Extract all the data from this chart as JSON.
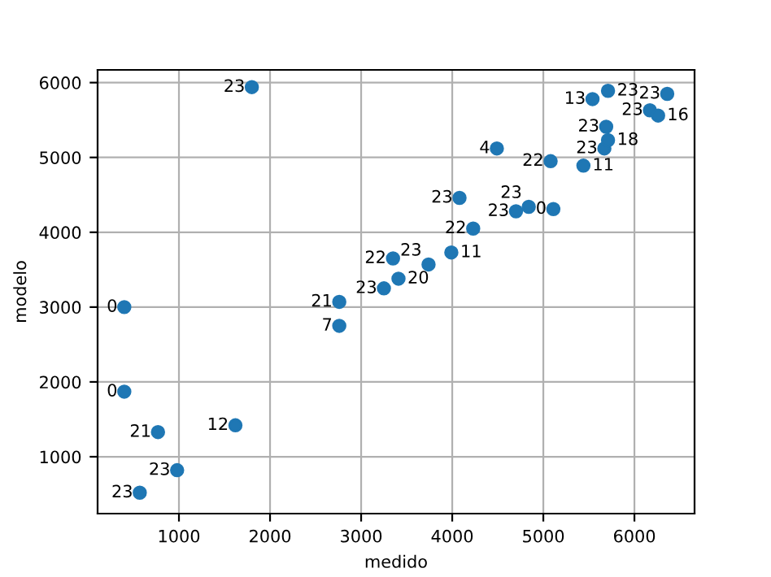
{
  "chart_data": {
    "type": "scatter",
    "xlabel": "medido",
    "ylabel": "modelo",
    "x": [
      1800,
      400,
      400,
      770,
      1620,
      980,
      570,
      2760,
      2760,
      3350,
      3410,
      3250,
      3740,
      3990,
      4230,
      4080,
      4490,
      4700,
      4840,
      5110,
      5080,
      5440,
      5670,
      5710,
      5690,
      5540,
      5710,
      6170,
      6260,
      6360
    ],
    "series": [
      {
        "color": "#1f77b4",
        "values": [
          5940,
          3000,
          1870,
          1330,
          1420,
          820,
          520,
          3070,
          2750,
          3650,
          3380,
          3250,
          3570,
          3730,
          4050,
          4460,
          5120,
          4280,
          4340,
          4310,
          4950,
          4890,
          5120,
          5230,
          5410,
          5780,
          5890,
          5630,
          5560,
          5850
        ]
      }
    ],
    "annotations": [
      {
        "text": "23",
        "x": 1800,
        "y": 5940
      },
      {
        "text": "0",
        "x": 400,
        "y": 3000
      },
      {
        "text": "0",
        "x": 400,
        "y": 1870
      },
      {
        "text": "21",
        "x": 770,
        "y": 1330
      },
      {
        "text": "12",
        "x": 1620,
        "y": 1420
      },
      {
        "text": "23",
        "x": 980,
        "y": 820
      },
      {
        "text": "23",
        "x": 570,
        "y": 520
      },
      {
        "text": "21",
        "x": 2760,
        "y": 3070
      },
      {
        "text": "7",
        "x": 2760,
        "y": 2750
      },
      {
        "text": "22",
        "x": 3350,
        "y": 3650
      },
      {
        "text": "20",
        "x": 3410,
        "y": 3380
      },
      {
        "text": "23",
        "x": 3250,
        "y": 3250
      },
      {
        "text": "23",
        "x": 3740,
        "y": 3570
      },
      {
        "text": "11",
        "x": 3990,
        "y": 3730
      },
      {
        "text": "22",
        "x": 4230,
        "y": 4050
      },
      {
        "text": "23",
        "x": 4080,
        "y": 4460
      },
      {
        "text": "4",
        "x": 4490,
        "y": 5120
      },
      {
        "text": "23",
        "x": 4700,
        "y": 4280
      },
      {
        "text": "23",
        "x": 4840,
        "y": 4340
      },
      {
        "text": "0",
        "x": 5110,
        "y": 4310
      },
      {
        "text": "22",
        "x": 5080,
        "y": 4950
      },
      {
        "text": "11",
        "x": 5440,
        "y": 4890
      },
      {
        "text": "23",
        "x": 5670,
        "y": 5120
      },
      {
        "text": "18",
        "x": 5710,
        "y": 5230
      },
      {
        "text": "23",
        "x": 5690,
        "y": 5410
      },
      {
        "text": "13",
        "x": 5540,
        "y": 5780
      },
      {
        "text": "23",
        "x": 5710,
        "y": 5890
      },
      {
        "text": "23",
        "x": 6170,
        "y": 5630
      },
      {
        "text": "16",
        "x": 6260,
        "y": 5560
      },
      {
        "text": "23",
        "x": 6360,
        "y": 5850
      }
    ],
    "xlim": [
      107,
      6660
    ],
    "ylim": [
      240,
      6170
    ],
    "xticks": [
      1000,
      2000,
      3000,
      4000,
      5000,
      6000
    ],
    "yticks": [
      1000,
      2000,
      3000,
      4000,
      5000,
      6000
    ],
    "grid": true,
    "marker": "circle"
  }
}
